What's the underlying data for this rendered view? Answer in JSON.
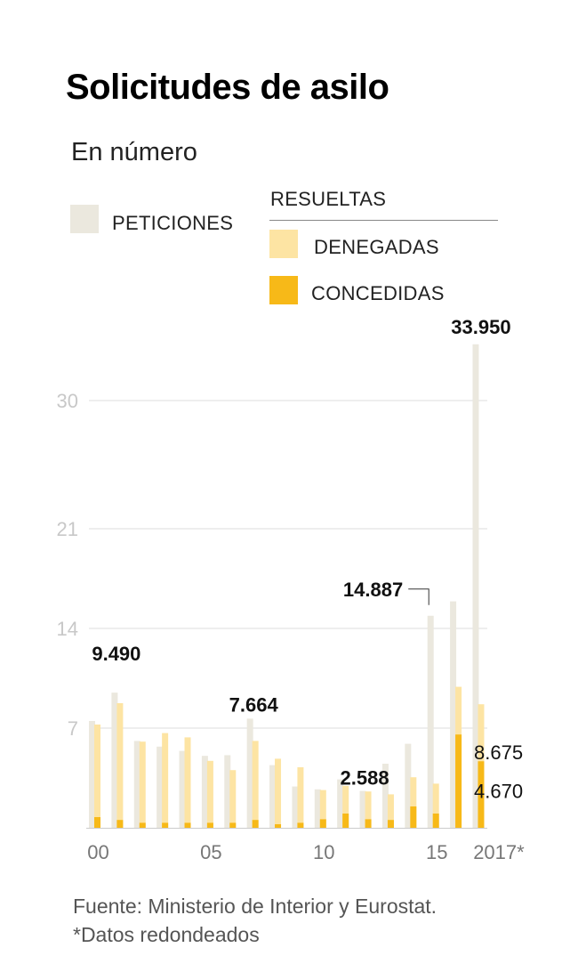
{
  "title": "Solicitudes de asilo",
  "subtitle": "En número",
  "legend": {
    "peticiones": "PETICIONES",
    "resueltas": "RESUELTAS",
    "denegadas": "DENEGADAS",
    "concedidas": "CONCEDIDAS"
  },
  "colors": {
    "peticiones": "#ebe8de",
    "denegadas": "#fde4a3",
    "concedidas": "#f7b918",
    "grid": "#dddddd",
    "tick": "#c8c8c8"
  },
  "source": {
    "line1": "Fuente: Ministerio de Interior y Eurostat.",
    "line2": "*Datos redondeados"
  },
  "chart_data": {
    "type": "bar",
    "title": "Solicitudes de asilo",
    "subtitle": "En número",
    "categories": [
      "2000",
      "2001",
      "2002",
      "2003",
      "2004",
      "2005",
      "2006",
      "2007",
      "2008",
      "2009",
      "2010",
      "2011",
      "2012",
      "2013",
      "2014",
      "2015",
      "2016",
      "2017*"
    ],
    "x_tick_labels": [
      {
        "category": "2000",
        "label": "00"
      },
      {
        "category": "2005",
        "label": "05"
      },
      {
        "category": "2010",
        "label": "10"
      },
      {
        "category": "2015",
        "label": "15"
      },
      {
        "category": "2017*",
        "label": "2017*"
      }
    ],
    "y_ticks": [
      {
        "value": 7000,
        "label": "7"
      },
      {
        "value": 14000,
        "label": "14"
      },
      {
        "value": 21000,
        "label": "21"
      },
      {
        "value": 30000,
        "label": "30"
      }
    ],
    "ylim": [
      0,
      35000
    ],
    "series": [
      {
        "name": "PETICIONES",
        "values": [
          7500,
          9490,
          6100,
          5700,
          5400,
          5050,
          5100,
          7664,
          4400,
          2900,
          2700,
          3400,
          2588,
          4500,
          5900,
          14887,
          15900,
          33950
        ]
      },
      {
        "name": "DENEGADAS",
        "values": [
          7250,
          8750,
          6050,
          6650,
          6350,
          4700,
          4050,
          6100,
          4850,
          4250,
          2650,
          2950,
          2550,
          2350,
          3550,
          3100,
          9900,
          8675
        ]
      },
      {
        "name": "CONCEDIDAS",
        "values": [
          750,
          550,
          350,
          350,
          350,
          350,
          350,
          550,
          250,
          350,
          600,
          1000,
          600,
          550,
          1500,
          1000,
          6550,
          4670
        ]
      }
    ],
    "annotations": [
      {
        "category": "2001",
        "series": "PETICIONES",
        "text": "9.490"
      },
      {
        "category": "2007",
        "series": "PETICIONES",
        "text": "7.664"
      },
      {
        "category": "2012",
        "series": "PETICIONES",
        "text": "2.588"
      },
      {
        "category": "2015",
        "series": "PETICIONES",
        "text": "14.887"
      },
      {
        "category": "2017*",
        "series": "PETICIONES",
        "text": "33.950"
      },
      {
        "category": "2017*",
        "series": "DENEGADAS",
        "text": "8.675"
      },
      {
        "category": "2017*",
        "series": "CONCEDIDAS",
        "text": "4.670"
      }
    ]
  }
}
